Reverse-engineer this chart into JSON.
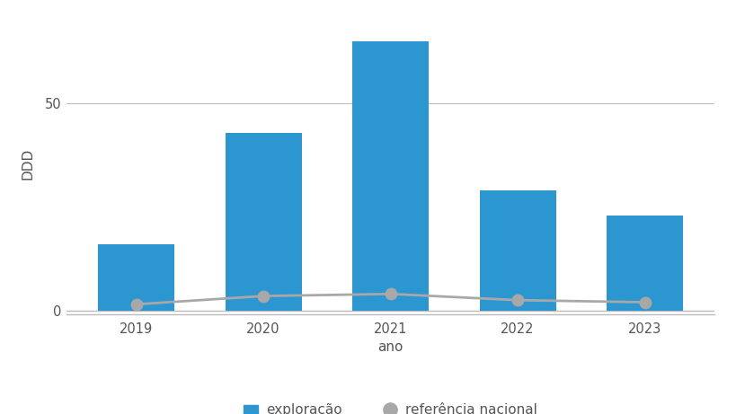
{
  "years": [
    2019,
    2020,
    2021,
    2022,
    2023
  ],
  "bar_values": [
    16,
    43,
    65,
    29,
    23
  ],
  "line_values": [
    1.5,
    3.5,
    4.0,
    2.5,
    2.0
  ],
  "bar_color": "#2B96D0",
  "line_color": "#A8A8A8",
  "ylabel": "DDD",
  "xlabel": "ano",
  "yticks": [
    0,
    50
  ],
  "ylim": [
    -1,
    72
  ],
  "xlim": [
    2018.45,
    2023.55
  ],
  "background_color": "#ffffff",
  "legend_bar_label": "exploração",
  "legend_line_label": "referência nacional",
  "bar_width": 0.6,
  "line_linewidth": 2.0,
  "line_markersize": 9
}
